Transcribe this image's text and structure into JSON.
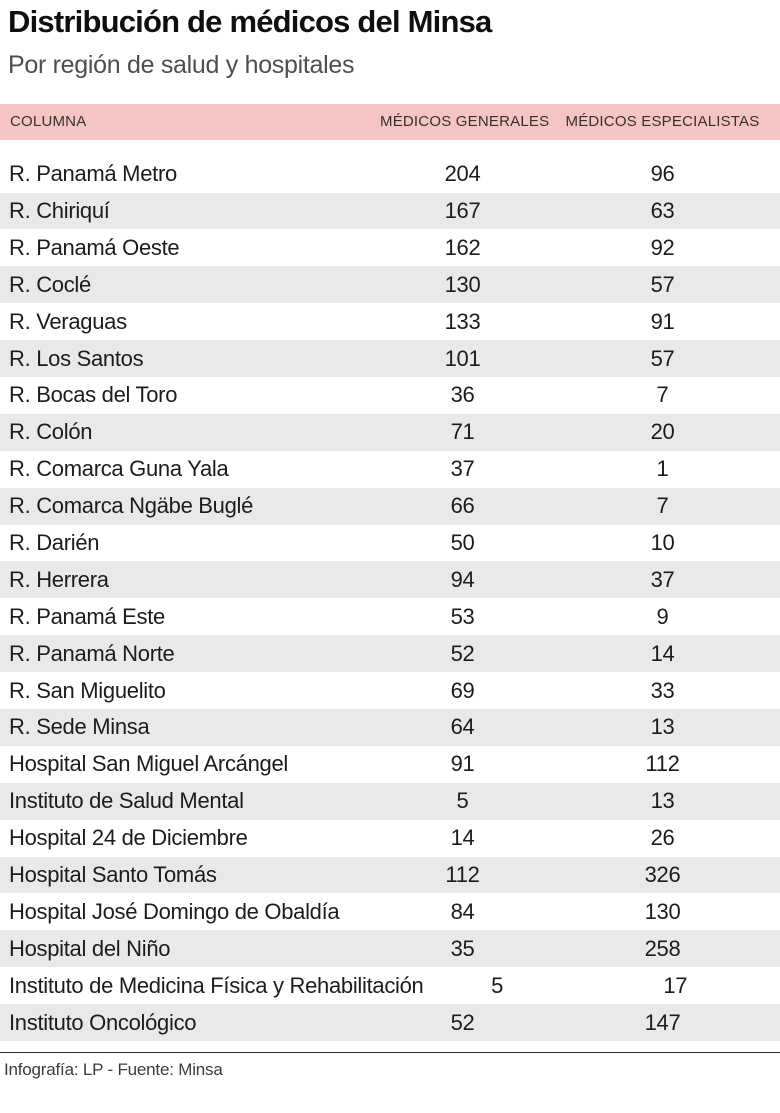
{
  "chart_data": {
    "type": "table",
    "title": "Distribución de médicos del Minsa",
    "subtitle": "Por región de salud y hospitales",
    "columns": [
      "COLUMNA",
      "MÉDICOS GENERALES",
      "MÉDICOS ESPECIALISTAS"
    ],
    "rows": [
      [
        "R. Panamá Metro",
        204,
        96
      ],
      [
        "R. Chiriquí",
        167,
        63
      ],
      [
        "R. Panamá Oeste",
        162,
        92
      ],
      [
        "R. Coclé",
        130,
        57
      ],
      [
        "R. Veraguas",
        133,
        91
      ],
      [
        "R. Los Santos",
        101,
        57
      ],
      [
        "R. Bocas del Toro",
        36,
        7
      ],
      [
        "R. Colón",
        71,
        20
      ],
      [
        "R. Comarca Guna Yala",
        37,
        1
      ],
      [
        "R. Comarca Ngäbe Buglé",
        66,
        7
      ],
      [
        "R. Darién",
        50,
        10
      ],
      [
        "R. Herrera",
        94,
        37
      ],
      [
        "R. Panamá Este",
        53,
        9
      ],
      [
        "R. Panamá Norte",
        52,
        14
      ],
      [
        "R. San Miguelito",
        69,
        33
      ],
      [
        "R. Sede Minsa",
        64,
        13
      ],
      [
        "Hospital San Miguel Arcángel",
        91,
        112
      ],
      [
        "Instituto de Salud Mental",
        5,
        13
      ],
      [
        "Hospital 24 de Diciembre",
        14,
        26
      ],
      [
        "Hospital Santo Tomás",
        112,
        326
      ],
      [
        "Hospital José Domingo de Obaldía",
        84,
        130
      ],
      [
        "Hospital del Niño",
        35,
        258
      ],
      [
        "Instituto de Medicina Física y Rehabilitación",
        5,
        17
      ],
      [
        "Instituto Oncológico",
        52,
        147
      ]
    ],
    "legend_position": "none",
    "grid": "alternating-row-banding"
  },
  "footer": {
    "credit": "Infografía: LP - Fuente: Minsa"
  },
  "colors": {
    "table_header_bg": "#f4c5c2",
    "row_alt_bg": "#e9e9e9",
    "title_color": "#0f0f0f",
    "subtitle_color": "#4e4e4e",
    "text_color": "#1c1c1c",
    "footer_rule_color": "#2e2e2e"
  }
}
